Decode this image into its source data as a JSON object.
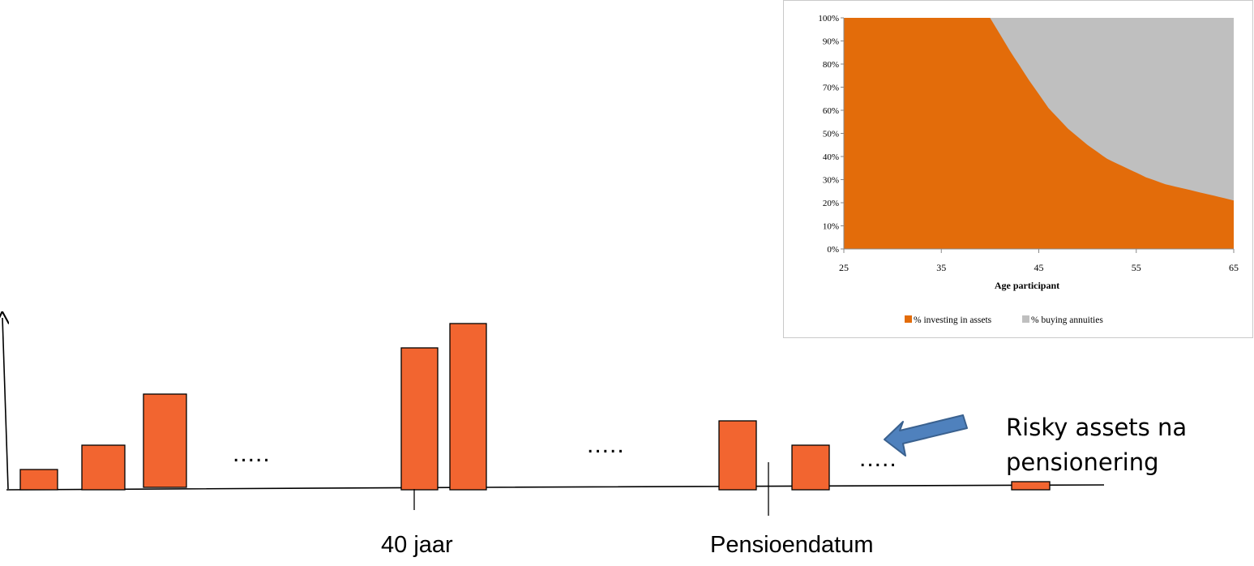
{
  "timeline": {
    "dots_1": ".....",
    "dots_2": ".....",
    "dots_3": ".....",
    "label_40": "40 jaar",
    "label_pension": "Pensioendatum",
    "callout_line1": "Risky assets na",
    "callout_line2": "pensionering",
    "bar_color": "#f26530",
    "arrow_color": "#4f81bd",
    "bars": [
      {
        "value": 25
      },
      {
        "value": 55
      },
      {
        "value": 115
      },
      {
        "value": 175
      },
      {
        "value": 205
      },
      {
        "value": 85
      },
      {
        "value": 55
      },
      {
        "value": 10
      }
    ]
  },
  "chart_data": {
    "type": "area",
    "xlabel": "Age participant",
    "x_ticks": [
      "25",
      "35",
      "45",
      "55",
      "65"
    ],
    "y_ticks": [
      "0%",
      "10%",
      "20%",
      "30%",
      "40%",
      "50%",
      "60%",
      "70%",
      "80%",
      "90%",
      "100%"
    ],
    "xlim": [
      25,
      65
    ],
    "ylim": [
      0,
      100
    ],
    "stacked": true,
    "legend_position": "bottom",
    "x": [
      25,
      30,
      35,
      40,
      42,
      44,
      46,
      48,
      50,
      52,
      54,
      56,
      58,
      60,
      62,
      65
    ],
    "series": [
      {
        "name": "% investing in assets",
        "color": "#e36c0a",
        "values": [
          100,
          100,
          100,
          100,
          86,
          73,
          61,
          52,
          45,
          39,
          35,
          31,
          28,
          26,
          24,
          21
        ]
      },
      {
        "name": "% buying annuities",
        "color": "#bfbfbf",
        "values": [
          0,
          0,
          0,
          0,
          14,
          27,
          39,
          48,
          55,
          61,
          65,
          69,
          72,
          74,
          76,
          79
        ]
      }
    ]
  }
}
